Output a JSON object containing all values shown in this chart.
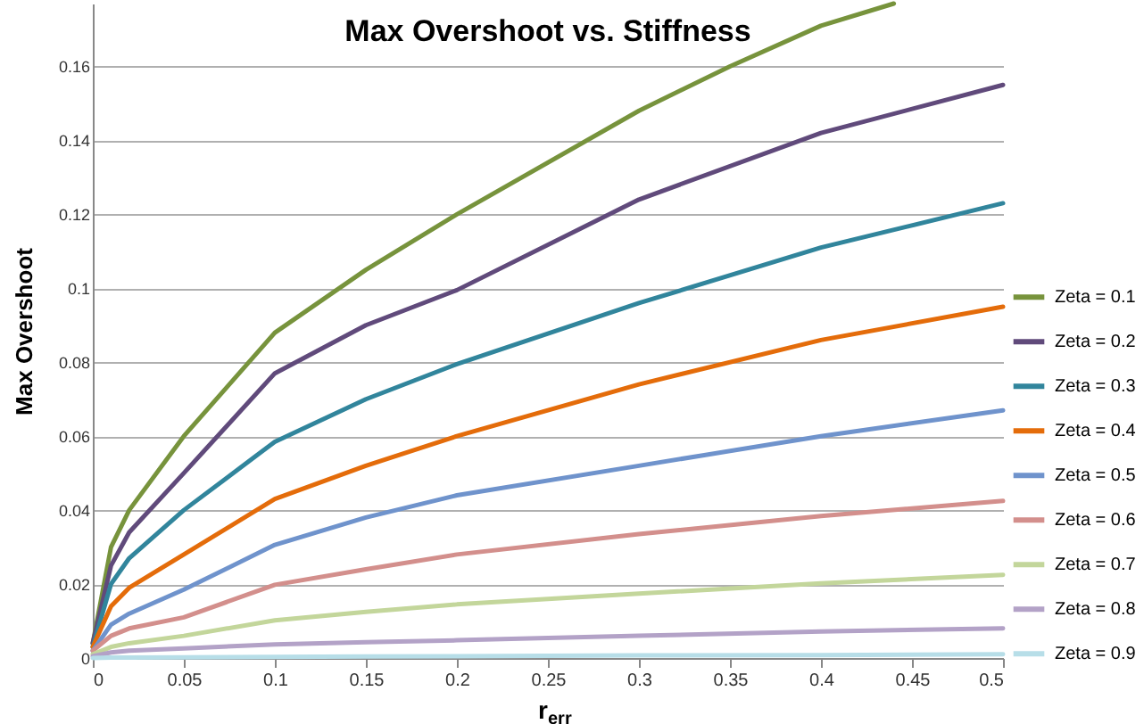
{
  "chart_data": {
    "type": "line",
    "title": "Max Overshoot vs. Stiffness",
    "xlabel": "r$_{err}$",
    "ylabel": "Max Overshoot",
    "x": [
      0,
      0.01,
      0.02,
      0.05,
      0.1,
      0.15,
      0.2,
      0.3,
      0.4,
      0.5
    ],
    "series": [
      {
        "name": "Zeta = 0.1",
        "color": "#77933c",
        "x": [
          0,
          0.01,
          0.02,
          0.05,
          0.1,
          0.15,
          0.2,
          0.3,
          0.35,
          0.4,
          0.44
        ],
        "values": [
          0.004,
          0.03,
          0.04,
          0.06,
          0.088,
          0.105,
          0.12,
          0.148,
          0.16,
          0.171,
          0.177
        ]
      },
      {
        "name": "Zeta = 0.2",
        "color": "#604a7b",
        "values": [
          0.004,
          0.025,
          0.034,
          0.05,
          0.077,
          0.09,
          0.0995,
          0.124,
          0.142,
          0.155
        ]
      },
      {
        "name": "Zeta = 0.3",
        "color": "#31859c",
        "values": [
          0.003,
          0.02,
          0.027,
          0.04,
          0.0585,
          0.07,
          0.0795,
          0.096,
          0.111,
          0.123
        ]
      },
      {
        "name": "Zeta = 0.4",
        "color": "#e46c0a",
        "values": [
          0.003,
          0.014,
          0.019,
          0.028,
          0.043,
          0.052,
          0.06,
          0.074,
          0.086,
          0.095
        ]
      },
      {
        "name": "Zeta = 0.5",
        "color": "#6f93cc",
        "values": [
          0.002,
          0.009,
          0.012,
          0.0185,
          0.0306,
          0.038,
          0.044,
          0.052,
          0.06,
          0.067
        ]
      },
      {
        "name": "Zeta = 0.6",
        "color": "#d38f8c",
        "values": [
          0.002,
          0.006,
          0.008,
          0.011,
          0.0198,
          0.024,
          0.028,
          0.0335,
          0.0384,
          0.0425
        ]
      },
      {
        "name": "Zeta = 0.7",
        "color": "#c3d69b",
        "values": [
          0.001,
          0.003,
          0.004,
          0.006,
          0.0102,
          0.0125,
          0.0145,
          0.0174,
          0.0202,
          0.0225
        ]
      },
      {
        "name": "Zeta = 0.8",
        "color": "#b3a2c7",
        "values": [
          0.0005,
          0.0015,
          0.002,
          0.0026,
          0.0037,
          0.0043,
          0.0048,
          0.006,
          0.0072,
          0.008
        ]
      },
      {
        "name": "Zeta = 0.9",
        "color": "#b7dee8",
        "values": [
          0,
          0.0001,
          0.0001,
          0.0002,
          0.0003,
          0.0004,
          0.0005,
          0.0007,
          0.0008,
          0.001
        ]
      }
    ],
    "xlim": [
      0,
      0.5
    ],
    "xticks": [
      0,
      0.05,
      0.1,
      0.15,
      0.2,
      0.25,
      0.3,
      0.35,
      0.4,
      0.45,
      0.5
    ],
    "ylim": [
      0,
      0.177
    ],
    "yticks": [
      0,
      0.02,
      0.04,
      0.06,
      0.08,
      0.1,
      0.12,
      0.14,
      0.16
    ],
    "grid": "y",
    "legend": "right",
    "marker": "none",
    "line_style": "solid"
  }
}
